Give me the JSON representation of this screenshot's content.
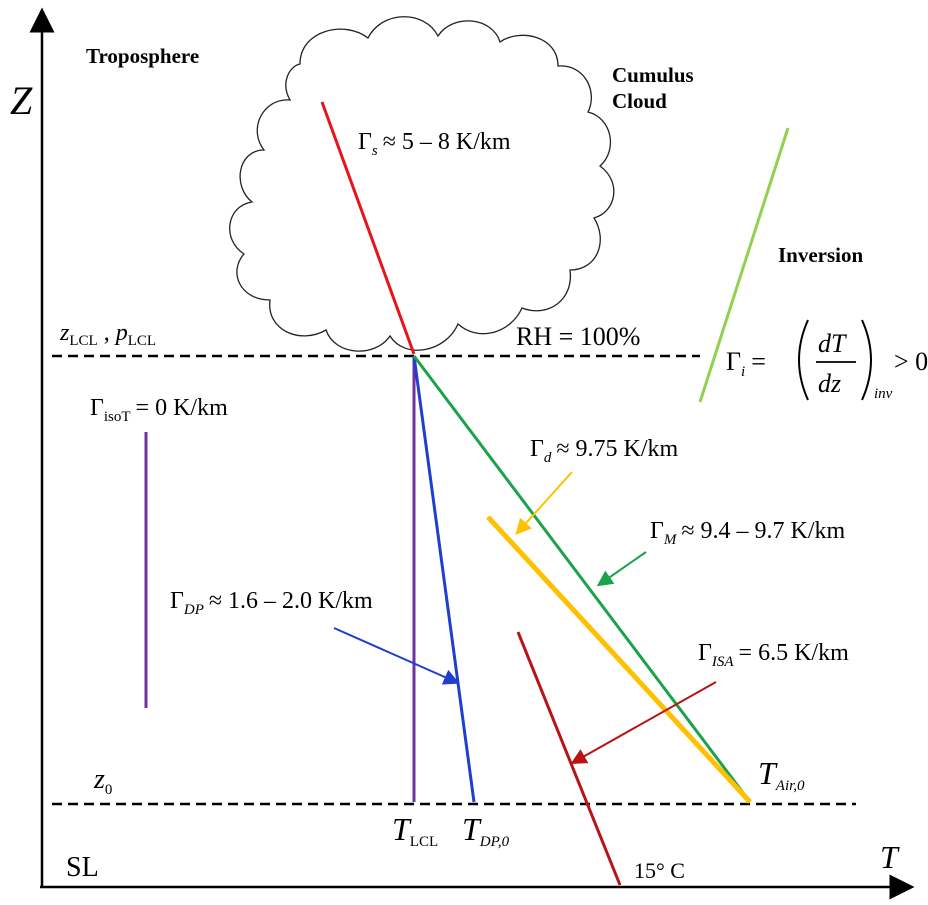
{
  "labels": {
    "troposphere": "Troposphere",
    "z_axis": "Z",
    "t_axis": "T",
    "sea_level": "SL",
    "cloud_line1": "Cumulus",
    "cloud_line2": "Cloud",
    "inversion": "Inversion",
    "rh": "RH = 100%",
    "temp_15c": "15° C"
  },
  "symbols": {
    "z_lcl": "z",
    "z_lcl_sub": "LCL",
    "p_lcl": "p",
    "p_lcl_sub": "LCL",
    "z0": "z",
    "z0_sub": "0",
    "t_lcl": "T",
    "t_lcl_sub": "LCL",
    "t_dp0": "T",
    "t_dp0_sub": "DP,0",
    "t_air0": "T",
    "t_air0_sub": "Air,0"
  },
  "lapse_rates": {
    "saturated": {
      "sym": "Γ",
      "sub": "s",
      "text": "≈ 5 – 8 K/km",
      "color": "#e8141b"
    },
    "isothermal": {
      "sym": "Γ",
      "sub": "isoT",
      "text": "= 0 K/km",
      "color": "#7030a0"
    },
    "dry": {
      "sym": "Γ",
      "sub": "d",
      "text": "≈ 9.75 K/km",
      "color": "#ffc000"
    },
    "moist": {
      "sym": "Γ",
      "sub": "M",
      "text": "≈ 9.4 – 9.7 K/km",
      "color": "#1aa34a"
    },
    "dew_point": {
      "sym": "Γ",
      "sub": "DP",
      "text": "≈ 1.6 – 2.0 K/km",
      "color": "#1f3fcc"
    },
    "isa": {
      "sym": "Γ",
      "sub": "ISA",
      "text": "= 6.5 K/km",
      "color": "#b81414"
    },
    "inversion": {
      "sym": "Γ",
      "sub": "i",
      "eq": "=",
      "frac_num": "dT",
      "frac_den": "dz",
      "frac_sub": "inv",
      "rel": "> 0",
      "color": "#92d050"
    }
  }
}
